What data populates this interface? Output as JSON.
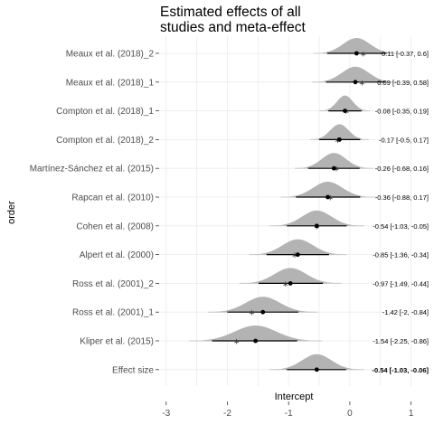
{
  "chart_data": {
    "type": "forest-density",
    "title_lines": [
      "Estimated effects of all",
      "studies and meta-effect"
    ],
    "xlabel": "Intercept",
    "ylabel": "order",
    "xlim": [
      -3.1,
      1.05
    ],
    "xticks": [
      -3,
      -2,
      -1,
      0,
      1
    ],
    "grid": true,
    "rows": [
      {
        "study": "Meaux et al. (2018)_2",
        "estimate": 0.11,
        "lower": -0.37,
        "upper": 0.6,
        "observed": 0.22,
        "sd": 0.22,
        "label": "0.11 [-0.37, 0.6]"
      },
      {
        "study": "Meaux et al. (2018)_1",
        "estimate": 0.09,
        "lower": -0.39,
        "upper": 0.58,
        "observed": 0.2,
        "sd": 0.22,
        "label": "0.09 [-0.39, 0.58]"
      },
      {
        "study": "Compton et al. (2018)_1",
        "estimate": -0.08,
        "lower": -0.35,
        "upper": 0.19,
        "observed": -0.06,
        "sd": 0.13,
        "label": "-0.08 [-0.35, 0.19]"
      },
      {
        "study": "Compton et al. (2018)_2",
        "estimate": -0.17,
        "lower": -0.5,
        "upper": 0.17,
        "observed": -0.2,
        "sd": 0.15,
        "label": "-0.17 [-0.5, 0.17]"
      },
      {
        "study": "Martínez-Sánchez et al. (2015)",
        "estimate": -0.26,
        "lower": -0.68,
        "upper": 0.16,
        "observed": -0.22,
        "sd": 0.2,
        "label": "-0.26 [-0.68, 0.16]"
      },
      {
        "study": "Rapcan et al. (2010)",
        "estimate": -0.36,
        "lower": -0.88,
        "upper": 0.17,
        "observed": -0.32,
        "sd": 0.24,
        "label": "-0.36 [-0.88, 0.17]"
      },
      {
        "study": "Cohen et al. (2008)",
        "estimate": -0.54,
        "lower": -1.03,
        "upper": -0.05,
        "observed": -0.54,
        "sd": 0.24,
        "label": "-0.54 [-1.03, -0.05]"
      },
      {
        "study": "Alpert et al. (2000)",
        "estimate": -0.85,
        "lower": -1.36,
        "upper": -0.34,
        "observed": -0.9,
        "sd": 0.25,
        "label": "-0.85 [-1.36, -0.34]"
      },
      {
        "study": "Ross et al. (2001)_2",
        "estimate": -0.97,
        "lower": -1.49,
        "upper": -0.44,
        "observed": -1.05,
        "sd": 0.26,
        "label": "-0.97 [-1.49, -0.44]"
      },
      {
        "study": "Ross et al. (2001)_1",
        "estimate": -1.42,
        "lower": -2,
        "upper": -0.84,
        "observed": -1.6,
        "sd": 0.28,
        "label": "-1.42 [-2, -0.84]"
      },
      {
        "study": "Kliper et al. (2015)",
        "estimate": -1.54,
        "lower": -2.25,
        "upper": -0.86,
        "observed": -1.85,
        "sd": 0.34,
        "label": "-1.54 [-2.25, -0.86]"
      },
      {
        "study": "Effect size",
        "estimate": -0.54,
        "lower": -1.03,
        "upper": -0.06,
        "observed": null,
        "sd": 0.24,
        "label": "-0.54 [-1.03, -0.06]",
        "bold": true
      }
    ]
  }
}
